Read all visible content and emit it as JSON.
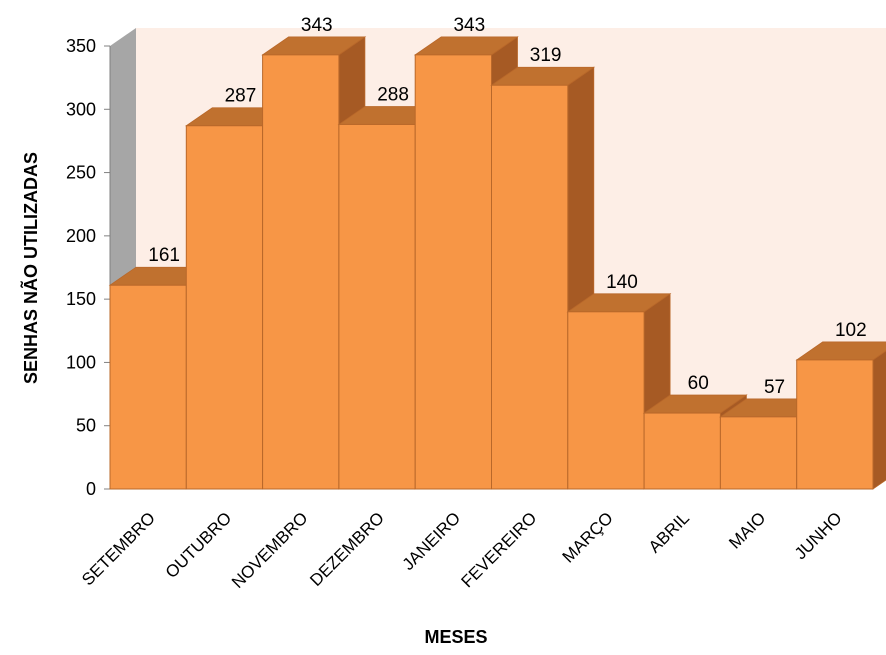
{
  "chart_data": {
    "type": "bar",
    "style": "3d-columns",
    "categories": [
      "SETEMBRO",
      "OUTUBRO",
      "NOVEMBRO",
      "DEZEMBRO",
      "JANEIRO",
      "FEVEREIRO",
      "MARÇO",
      "ABRIL",
      "MAIO",
      "JUNHO"
    ],
    "values": [
      161,
      287,
      343,
      288,
      343,
      319,
      140,
      60,
      57,
      102
    ],
    "data_labels": [
      "161",
      "287",
      "343",
      "288",
      "343",
      "319",
      "140",
      "60",
      "57",
      "102"
    ],
    "xlabel": "MESES",
    "ylabel": "SENHAS NÃO UTILIZADAS",
    "ylim": [
      0,
      350
    ],
    "yticks": [
      "0",
      "50",
      "100",
      "150",
      "200",
      "250",
      "300",
      "350"
    ],
    "grid": false,
    "legend": "none",
    "colors": {
      "bar_front": "#F79646",
      "bar_top": "#C0712F",
      "bar_side": "#A65A24",
      "bar_edge": "#B9682A",
      "back_wall": "#FDEEE6",
      "side_wall": "#A6A6A6"
    }
  }
}
